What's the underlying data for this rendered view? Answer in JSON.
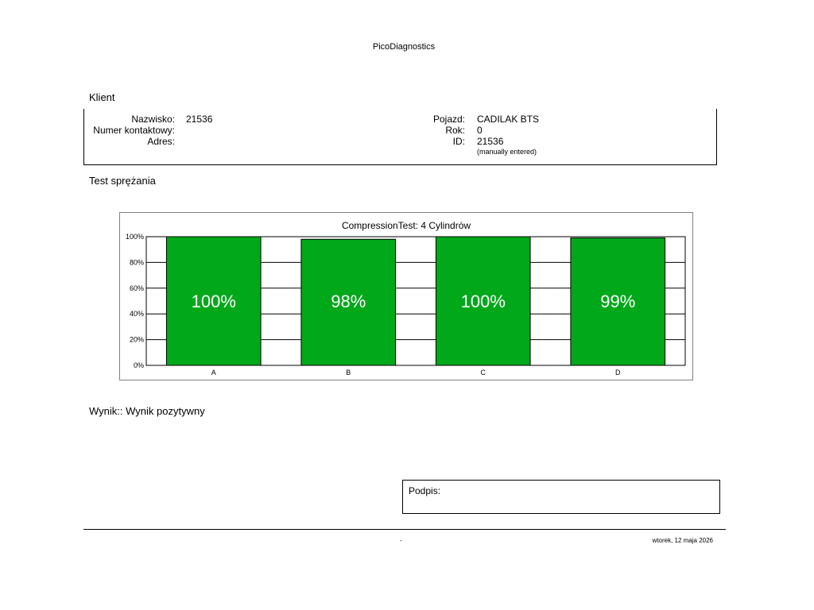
{
  "app_title": "PicoDiagnostics",
  "client_section": {
    "title": "Klient",
    "surname_label": "Nazwisko:",
    "surname_value": "21536",
    "contact_label": "Numer kontaktowy:",
    "contact_value": "",
    "address_label": "Adres:",
    "address_value": "",
    "vehicle_label": "Pojazd:",
    "vehicle_value": "CADILAK BTS",
    "year_label": "Rok:",
    "year_value": "0",
    "id_label": "ID:",
    "id_value": "21536",
    "id_note": "(manually entered)"
  },
  "test_section": {
    "title": "Test sprężania"
  },
  "chart_data": {
    "type": "bar",
    "title": "CompressionTest: 4 Cylindrów",
    "categories": [
      "A",
      "B",
      "C",
      "D"
    ],
    "values": [
      100,
      98,
      100,
      99
    ],
    "data_labels": [
      "100%",
      "98%",
      "100%",
      "99%"
    ],
    "ylim": [
      0,
      100
    ],
    "yticks": [
      "0%",
      "20%",
      "40%",
      "60%",
      "80%",
      "100%"
    ],
    "xlabel": "",
    "ylabel": "",
    "grid": true,
    "bar_color": "#00a81a"
  },
  "result": {
    "label": "Wynik::",
    "value": "Wynik pozytywny"
  },
  "signature": {
    "label": "Podpis:"
  },
  "footer": {
    "center_text": "-",
    "date": "wtorek, 12 maja 2026"
  }
}
